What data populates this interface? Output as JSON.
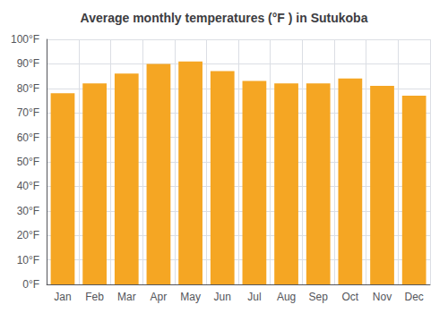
{
  "chart_data": {
    "type": "bar",
    "title": "Average monthly temperatures (°F ) in Sutukoba",
    "categories": [
      "Jan",
      "Feb",
      "Mar",
      "Apr",
      "May",
      "Jun",
      "Jul",
      "Aug",
      "Sep",
      "Oct",
      "Nov",
      "Dec"
    ],
    "values": [
      78,
      82,
      86,
      90,
      91,
      87,
      83,
      82,
      82,
      84,
      81,
      77
    ],
    "color": "#F5A623",
    "ylim": [
      0,
      100
    ],
    "yticks": [
      {
        "value": 0,
        "label": "0°F"
      },
      {
        "value": 10,
        "label": "10°F"
      },
      {
        "value": 20,
        "label": "20°F"
      },
      {
        "value": 30,
        "label": "30°F"
      },
      {
        "value": 40,
        "label": "40°F"
      },
      {
        "value": 50,
        "label": "50°F"
      },
      {
        "value": 60,
        "label": "60°F"
      },
      {
        "value": 70,
        "label": "70°F"
      },
      {
        "value": 80,
        "label": "80°F"
      },
      {
        "value": 90,
        "label": "90°F"
      },
      {
        "value": 100,
        "label": "100°F"
      }
    ],
    "grid": true
  }
}
